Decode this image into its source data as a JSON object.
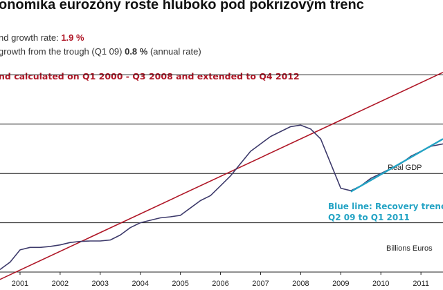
{
  "title": "onomika eurozóny roste hluboko pod pokrizovým trenc",
  "annotations": {
    "trend_rate_label": "nd growth rate: ",
    "trend_rate_value": "1.9 %",
    "trough_label": " growth from the trough (Q1 09) ",
    "trough_value": "0.8 %",
    "trough_suffix": " (annual rate)",
    "trend_note": "nd calculated on Q1 2000 - Q3 2008 and extended to Q4 2012",
    "real_gdp": "Real GDP",
    "recovery_line1": "Blue line: Recovery trenc",
    "recovery_line2": "Q2 09 to Q1 2011",
    "units": "Billions Euros"
  },
  "colors": {
    "gdp": "#3d3a6b",
    "trend": "#b01828",
    "recovery": "#23a3c4",
    "grid": "#1a1a1a"
  },
  "chart_data": {
    "type": "line",
    "x_ticks": [
      "2001",
      "2002",
      "2003",
      "2004",
      "2005",
      "2006",
      "2007",
      "2008",
      "2009",
      "2010",
      "2011"
    ],
    "x_range": [
      2000.5,
      2011.55
    ],
    "y_range": [
      0,
      5
    ],
    "y_scale_note": "relative index; gridlines at 1, 2, 3, 4",
    "grid": "horizontal",
    "series": [
      {
        "name": "Real GDP",
        "x": [
          2000.5,
          2000.75,
          2001.0,
          2001.25,
          2001.5,
          2001.75,
          2002.0,
          2002.25,
          2002.5,
          2002.75,
          2003.0,
          2003.25,
          2003.5,
          2003.75,
          2004.0,
          2004.25,
          2004.5,
          2004.75,
          2005.0,
          2005.25,
          2005.5,
          2005.75,
          2006.0,
          2006.25,
          2006.5,
          2006.75,
          2007.0,
          2007.25,
          2007.5,
          2007.75,
          2008.0,
          2008.25,
          2008.5,
          2008.75,
          2009.0,
          2009.25,
          2009.5,
          2009.75,
          2010.0,
          2010.25,
          2010.5,
          2010.75,
          2011.0,
          2011.25,
          2011.55
        ],
        "y": [
          0.05,
          0.2,
          0.45,
          0.5,
          0.5,
          0.52,
          0.55,
          0.6,
          0.62,
          0.63,
          0.63,
          0.65,
          0.75,
          0.9,
          1.0,
          1.05,
          1.1,
          1.12,
          1.15,
          1.3,
          1.45,
          1.55,
          1.75,
          1.95,
          2.2,
          2.45,
          2.6,
          2.75,
          2.85,
          2.95,
          2.98,
          2.9,
          2.7,
          2.2,
          1.7,
          1.65,
          1.75,
          1.9,
          2.0,
          2.1,
          2.2,
          2.35,
          2.45,
          2.55,
          2.6
        ]
      },
      {
        "name": "Trend",
        "x": [
          2000.5,
          2011.55
        ],
        "y": [
          -0.15,
          4.05
        ]
      },
      {
        "name": "Recovery trend",
        "x": [
          2009.25,
          2011.55
        ],
        "y": [
          1.63,
          2.7
        ]
      }
    ]
  }
}
